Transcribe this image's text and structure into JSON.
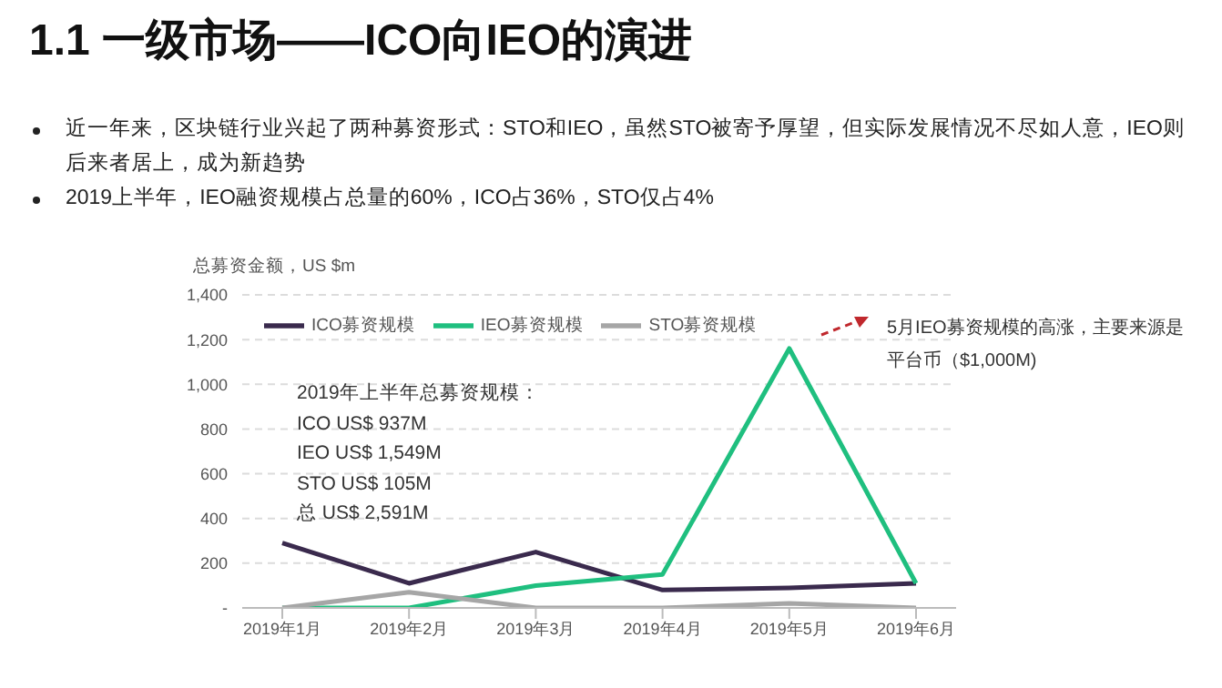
{
  "chart_data": {
    "type": "line",
    "title": "1.1 一级市场——ICO向IEO的演进",
    "ylabel": "总募资金额，US $m",
    "categories": [
      "2019年1月",
      "2019年2月",
      "2019年3月",
      "2019年4月",
      "2019年5月",
      "2019年6月"
    ],
    "series": [
      {
        "name": "ICO募资规模",
        "color": "#3a2a4d",
        "values": [
          290,
          110,
          250,
          80,
          90,
          110
        ]
      },
      {
        "name": "IEO募资规模",
        "color": "#1fbf7f",
        "values": [
          0,
          0,
          100,
          150,
          1160,
          110
        ]
      },
      {
        "name": "STO募资规模",
        "color": "#a6a6a6",
        "values": [
          0,
          70,
          0,
          0,
          20,
          0
        ]
      }
    ],
    "ylim": [
      0,
      1400
    ],
    "yticks": [
      {
        "value": 0,
        "label": "-"
      },
      {
        "value": 200,
        "label": "200"
      },
      {
        "value": 400,
        "label": "400"
      },
      {
        "value": 600,
        "label": "600"
      },
      {
        "value": 800,
        "label": "800"
      },
      {
        "value": 1000,
        "label": "1,000"
      },
      {
        "value": 1200,
        "label": "1,200"
      },
      {
        "value": 1400,
        "label": "1,400"
      }
    ],
    "grid": "y",
    "legend": "top",
    "marker": "none",
    "line_style": "solid",
    "annotations": [
      "近一年来，区块链行业兴起了两种募资形式：STO和IEO，虽然STO被寄予厚望，但实际发展情况不尽如人意，IEO则后来者居上，成为新趋势",
      "2019上半年，IEO融资规模占总量的60%，ICO占36%，STO仅占4%",
      "2019年上半年总募资规模：",
      "ICO US$ 937M",
      "IEO US$ 1,549M",
      "STO US$ 105M",
      "总 US$ 2,591M",
      "5月IEO募资规模的高涨，主要来源是平台币（$1,000M)"
    ]
  }
}
